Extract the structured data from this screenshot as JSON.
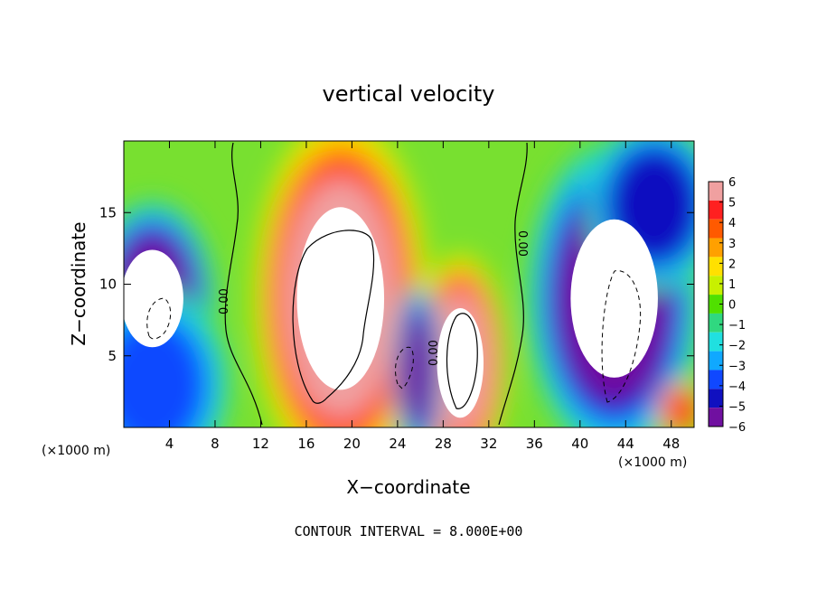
{
  "chart_data": {
    "type": "heatmap",
    "title": "vertical velocity",
    "xlabel": "X−coordinate",
    "ylabel": "Z−coordinate",
    "x_unit_label_left": "(×1000 m)",
    "x_unit_label_right": "(×1000 m)",
    "xlim": [
      0,
      50
    ],
    "ylim": [
      0,
      20
    ],
    "x_ticks": [
      4,
      8,
      12,
      16,
      20,
      24,
      28,
      32,
      36,
      40,
      44,
      48
    ],
    "y_ticks": [
      5,
      10,
      15
    ],
    "colorbar": {
      "min": -6,
      "max": 6,
      "ticks": [
        "6",
        "5",
        "4",
        "3",
        "2",
        "1",
        "0",
        "−1",
        "−2",
        "−3",
        "−4",
        "−5",
        "−6"
      ],
      "colors": [
        "#f0a0a0",
        "#ff2020",
        "#ff5a00",
        "#ffa000",
        "#ffe000",
        "#c8f000",
        "#50e000",
        "#30d880",
        "#20e0e0",
        "#10a8ff",
        "#1048ff",
        "#1010c0",
        "#7010a0"
      ]
    },
    "contour_labels": [
      "0.00",
      "0.00",
      "0.00"
    ],
    "footer": "CONTOUR INTERVAL = 8.000E+00",
    "features": [
      {
        "kind": "updraft",
        "x": 19,
        "z": 9,
        "rx": 4.5,
        "rz": 7.5,
        "value": 7
      },
      {
        "kind": "updraft",
        "x": 29.5,
        "z": 4.5,
        "rx": 2.4,
        "rz": 4.5,
        "value": 7
      },
      {
        "kind": "downdraft",
        "x": 2.5,
        "z": 9,
        "rx": 3.2,
        "rz": 4,
        "value": -7
      },
      {
        "kind": "downdraft",
        "x": 43,
        "z": 9,
        "rx": 4.5,
        "rz": 6.5,
        "value": -7
      },
      {
        "kind": "downdraft",
        "x": 46.5,
        "z": 15.5,
        "rx": 3.5,
        "rz": 3.5,
        "value": -5
      },
      {
        "kind": "downdraft",
        "x": 25.8,
        "z": 4,
        "rx": 1.3,
        "rz": 3.5,
        "value": -6
      },
      {
        "kind": "downdraft",
        "x": 2.5,
        "z": 3,
        "rx": 4,
        "rz": 4,
        "value": -4
      },
      {
        "kind": "updraft",
        "x": 48.8,
        "z": 1.2,
        "rx": 1.2,
        "rz": 1.2,
        "value": 5
      }
    ]
  }
}
